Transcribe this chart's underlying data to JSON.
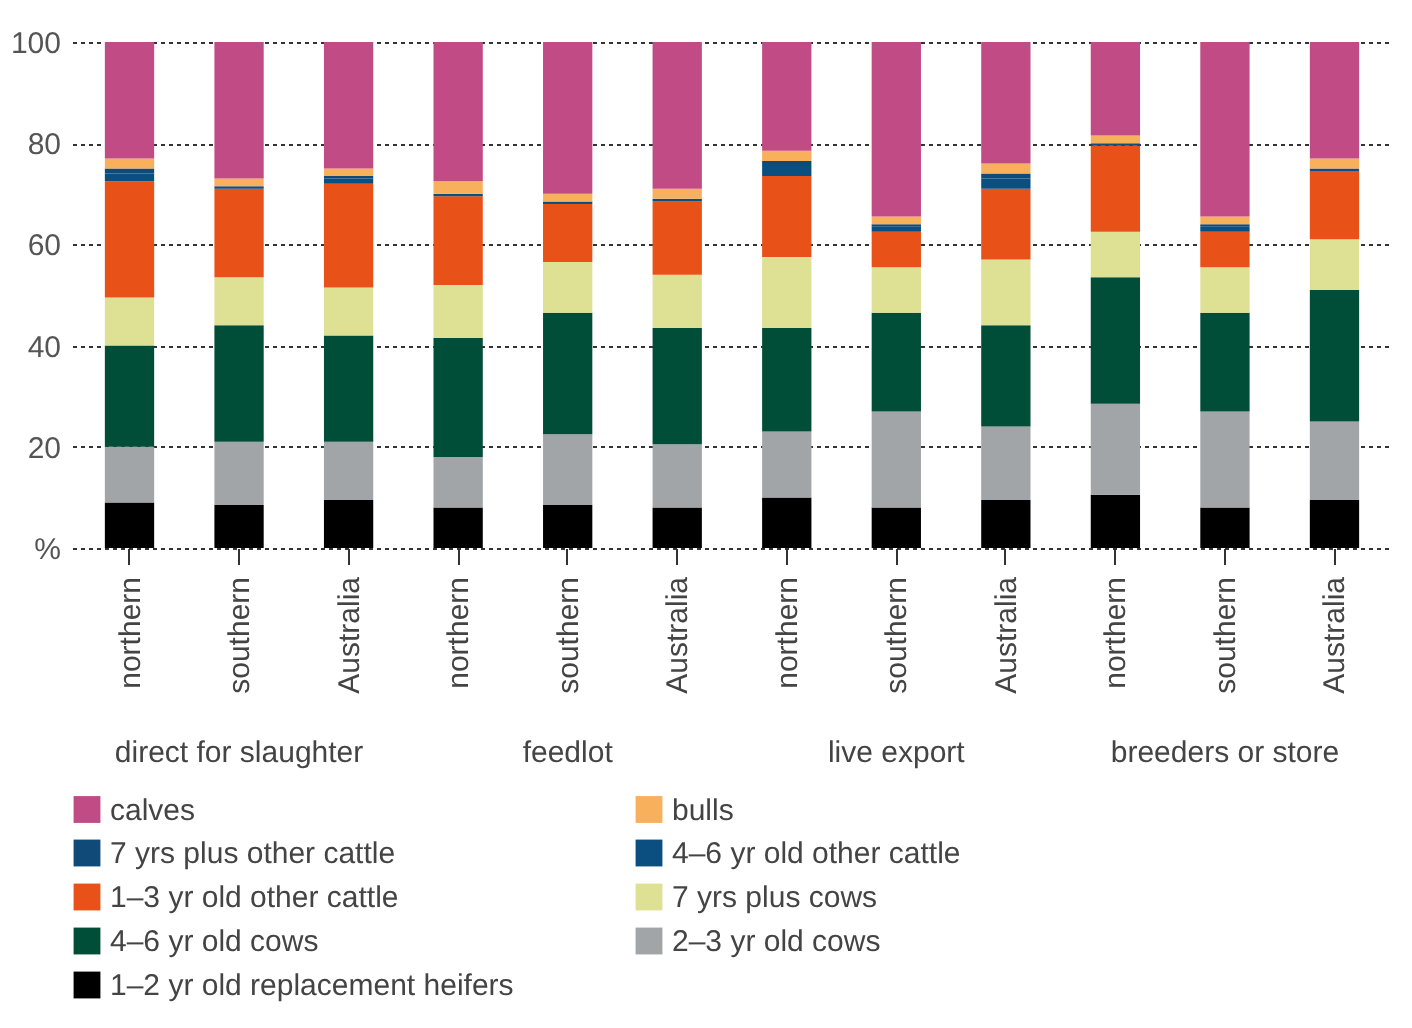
{
  "chart_data": {
    "type": "bar",
    "stacked": true,
    "categories": [
      "northern",
      "southern",
      "Australia",
      "northern",
      "southern",
      "Australia",
      "northern",
      "southern",
      "Australia",
      "northern",
      "southern",
      "Australia"
    ],
    "annotations": [
      "direct for slaughter",
      "feedlot",
      "live export",
      "breeders or store"
    ],
    "series": [
      {
        "name": "1–2 yr old replacement heifers",
        "color": "#000000",
        "values": [
          9,
          8.5,
          9.5,
          8,
          8.5,
          8,
          10,
          8,
          9.5,
          10.5,
          8,
          9.5
        ]
      },
      {
        "name": "2–3 yr old cows",
        "color": "#a1a5a7",
        "values": [
          11,
          12.5,
          11.5,
          10,
          14,
          12.5,
          13,
          19,
          14.5,
          18,
          19,
          15.5
        ]
      },
      {
        "name": "4–6 yr old cows",
        "color": "#004d38",
        "values": [
          20,
          23,
          21,
          23.5,
          24,
          23,
          20.5,
          19.5,
          20,
          25,
          19.5,
          26
        ]
      },
      {
        "name": "7 yrs plus cows",
        "color": "#dee093",
        "values": [
          9.5,
          9.5,
          9.5,
          10.5,
          10,
          10.5,
          14,
          9,
          13,
          9,
          9,
          10
        ]
      },
      {
        "name": "1–3 yr old other cattle",
        "color": "#e85117",
        "values": [
          23,
          17.5,
          20.5,
          17.5,
          11.5,
          14.5,
          16,
          7,
          14,
          17,
          7,
          13.5
        ]
      },
      {
        "name": "4–6 yr old other cattle",
        "color": "#0b4e80",
        "values": [
          1.5,
          0.5,
          1,
          0.5,
          0.5,
          0.5,
          2,
          1,
          2,
          0.5,
          1,
          0.5
        ]
      },
      {
        "name": "7 yrs plus other cattle",
        "color": "#0f4a78",
        "values": [
          1,
          0,
          0.5,
          0,
          0,
          0,
          1,
          0.5,
          1,
          0,
          0.5,
          0
        ]
      },
      {
        "name": "bulls",
        "color": "#f9b05c",
        "values": [
          2,
          1.5,
          1.5,
          2.5,
          1.5,
          2,
          2,
          1.5,
          2,
          1.5,
          1.5,
          2
        ]
      },
      {
        "name": "calves",
        "color": "#c04b85",
        "values": [
          23,
          27,
          25,
          27.5,
          30,
          29,
          21.5,
          34.5,
          24,
          18.5,
          34.5,
          23
        ]
      }
    ],
    "ylim": [
      0,
      100
    ],
    "yticks": [
      {
        "value": 0,
        "label": "%"
      },
      20,
      40,
      60,
      80,
      100
    ],
    "grid": "y",
    "legend": "bottom"
  }
}
